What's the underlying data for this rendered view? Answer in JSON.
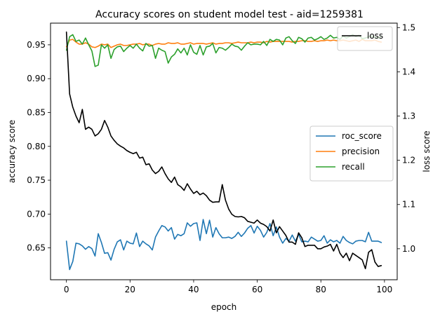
{
  "chart_data": {
    "type": "line",
    "title": "Accuracy scores on student model test - aid=1259381",
    "xlabel": "epoch",
    "ylabel": "accuracy score",
    "y2label": "loss score",
    "xlim": [
      -5,
      104
    ],
    "ylim": [
      0.603,
      0.982
    ],
    "y2lim": [
      0.93,
      1.51
    ],
    "xticks": [
      0,
      20,
      40,
      60,
      80,
      100
    ],
    "yticks": [
      0.65,
      0.7,
      0.75,
      0.8,
      0.85,
      0.9,
      0.95
    ],
    "y2ticks": [
      1.0,
      1.1,
      1.2,
      1.3,
      1.4,
      1.5
    ],
    "grid": false,
    "legend_position": "center-right",
    "legend2_position": "top-right",
    "series": [
      {
        "name": "roc_score",
        "axis": "left",
        "color": "#1f77b4",
        "values": [
          0.66,
          0.618,
          0.63,
          0.657,
          0.656,
          0.653,
          0.648,
          0.652,
          0.649,
          0.638,
          0.671,
          0.658,
          0.642,
          0.643,
          0.632,
          0.648,
          0.659,
          0.662,
          0.647,
          0.66,
          0.657,
          0.656,
          0.672,
          0.652,
          0.66,
          0.656,
          0.653,
          0.647,
          0.666,
          0.675,
          0.683,
          0.681,
          0.675,
          0.68,
          0.663,
          0.67,
          0.668,
          0.671,
          0.687,
          0.682,
          0.686,
          0.687,
          0.661,
          0.692,
          0.671,
          0.691,
          0.666,
          0.68,
          0.671,
          0.665,
          0.665,
          0.666,
          0.664,
          0.667,
          0.673,
          0.667,
          0.672,
          0.679,
          0.683,
          0.672,
          0.682,
          0.676,
          0.666,
          0.673,
          0.686,
          0.668,
          0.681,
          0.666,
          0.657,
          0.664,
          0.66,
          0.669,
          0.66,
          0.67,
          0.659,
          0.66,
          0.659,
          0.666,
          0.663,
          0.66,
          0.661,
          0.668,
          0.657,
          0.662,
          0.659,
          0.661,
          0.657,
          0.667,
          0.661,
          0.658,
          0.656,
          0.66,
          0.661,
          0.661,
          0.659,
          0.673,
          0.66,
          0.66,
          0.66,
          0.658
        ]
      },
      {
        "name": "precision",
        "axis": "left",
        "color": "#ff7f0e",
        "values": [
          0.947,
          0.957,
          0.958,
          0.954,
          0.951,
          0.951,
          0.953,
          0.951,
          0.947,
          0.946,
          0.948,
          0.951,
          0.95,
          0.951,
          0.946,
          0.948,
          0.95,
          0.951,
          0.949,
          0.949,
          0.95,
          0.951,
          0.951,
          0.952,
          0.95,
          0.951,
          0.951,
          0.949,
          0.951,
          0.952,
          0.951,
          0.951,
          0.953,
          0.952,
          0.952,
          0.953,
          0.951,
          0.951,
          0.952,
          0.953,
          0.951,
          0.952,
          0.952,
          0.952,
          0.951,
          0.952,
          0.953,
          0.951,
          0.952,
          0.952,
          0.953,
          0.953,
          0.952,
          0.953,
          0.954,
          0.953,
          0.953,
          0.953,
          0.954,
          0.953,
          0.954,
          0.954,
          0.953,
          0.955,
          0.954,
          0.955,
          0.955,
          0.955,
          0.955,
          0.955,
          0.955,
          0.954,
          0.955,
          0.955,
          0.956,
          0.956,
          0.955,
          0.955,
          0.956,
          0.955,
          0.956,
          0.956,
          0.957,
          0.956,
          0.957,
          0.956,
          0.956,
          0.957,
          0.956,
          0.955,
          0.956,
          0.957,
          0.955,
          0.958,
          0.956,
          0.956,
          0.956,
          0.957,
          0.955,
          0.954
        ]
      },
      {
        "name": "recall",
        "axis": "left",
        "color": "#2ca02c",
        "values": [
          0.942,
          0.962,
          0.965,
          0.955,
          0.957,
          0.951,
          0.96,
          0.95,
          0.941,
          0.918,
          0.92,
          0.95,
          0.945,
          0.95,
          0.93,
          0.943,
          0.947,
          0.948,
          0.94,
          0.945,
          0.949,
          0.945,
          0.951,
          0.945,
          0.941,
          0.952,
          0.948,
          0.949,
          0.93,
          0.945,
          0.942,
          0.94,
          0.923,
          0.932,
          0.936,
          0.944,
          0.938,
          0.945,
          0.935,
          0.95,
          0.939,
          0.936,
          0.949,
          0.935,
          0.947,
          0.948,
          0.952,
          0.938,
          0.946,
          0.945,
          0.942,
          0.946,
          0.951,
          0.948,
          0.947,
          0.942,
          0.948,
          0.953,
          0.95,
          0.951,
          0.951,
          0.95,
          0.955,
          0.949,
          0.958,
          0.955,
          0.958,
          0.957,
          0.95,
          0.96,
          0.962,
          0.956,
          0.952,
          0.961,
          0.959,
          0.954,
          0.96,
          0.961,
          0.957,
          0.959,
          0.962,
          0.958,
          0.96,
          0.964,
          0.96,
          0.961,
          0.958,
          0.963,
          0.96,
          0.962,
          0.965,
          0.962,
          0.964,
          0.959,
          0.96,
          0.962,
          0.963,
          0.961,
          0.96,
          0.963
        ]
      },
      {
        "name": "loss",
        "axis": "right",
        "color": "#000000",
        "values": [
          1.49,
          1.35,
          1.32,
          1.3,
          1.285,
          1.315,
          1.27,
          1.275,
          1.27,
          1.255,
          1.26,
          1.27,
          1.29,
          1.275,
          1.255,
          1.245,
          1.237,
          1.232,
          1.228,
          1.222,
          1.218,
          1.215,
          1.218,
          1.205,
          1.207,
          1.19,
          1.192,
          1.178,
          1.17,
          1.175,
          1.185,
          1.17,
          1.158,
          1.15,
          1.162,
          1.145,
          1.14,
          1.132,
          1.147,
          1.135,
          1.125,
          1.13,
          1.122,
          1.126,
          1.12,
          1.11,
          1.105,
          1.106,
          1.106,
          1.145,
          1.11,
          1.09,
          1.078,
          1.073,
          1.072,
          1.073,
          1.07,
          1.062,
          1.06,
          1.058,
          1.065,
          1.058,
          1.055,
          1.05,
          1.04,
          1.065,
          1.036,
          1.05,
          1.04,
          1.03,
          1.015,
          1.015,
          1.01,
          1.036,
          1.025,
          1.005,
          1.008,
          1.008,
          1.008,
          1.0,
          1.0,
          1.004,
          1.006,
          1.01,
          0.995,
          1.01,
          0.99,
          0.98,
          0.99,
          0.973,
          0.99,
          0.985,
          0.98,
          0.975,
          0.955,
          0.992,
          0.998,
          0.97,
          0.96,
          0.962
        ]
      }
    ]
  }
}
